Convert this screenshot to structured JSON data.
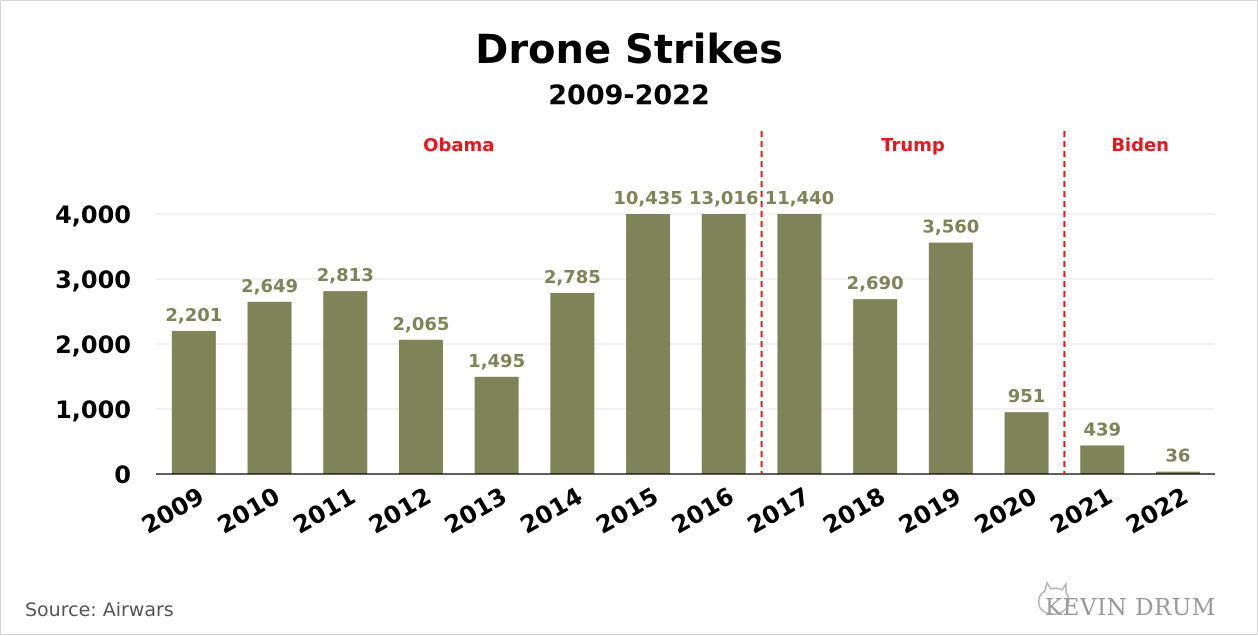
{
  "chart_data": {
    "type": "bar",
    "title": "Drone Strikes",
    "subtitle": "2009-2022",
    "categories": [
      "2009",
      "2010",
      "2011",
      "2012",
      "2013",
      "2014",
      "2015",
      "2016",
      "2017",
      "2018",
      "2019",
      "2020",
      "2021",
      "2022"
    ],
    "values": [
      2201,
      2649,
      2813,
      2065,
      1495,
      2785,
      10435,
      13016,
      11440,
      2690,
      3560,
      951,
      439,
      36
    ],
    "value_labels": [
      "2,201",
      "2,649",
      "2,813",
      "2,065",
      "1,495",
      "2,785",
      "10,435",
      "13,016",
      "11,440",
      "2,690",
      "3,560",
      "951",
      "439",
      "36"
    ],
    "ylim": [
      0,
      4000
    ],
    "yticks": [
      0,
      1000,
      2000,
      3000,
      4000
    ],
    "ytick_labels": [
      "0",
      "1,000",
      "2,000",
      "3,000",
      "4,000"
    ],
    "bars_clipped_at_axis_max": true,
    "bar_color": "#7f8458",
    "label_color": "#7f8458",
    "grid": true,
    "annotations": [
      {
        "text": "Obama",
        "from": "2009",
        "to": "2016",
        "color": "#e8171b"
      },
      {
        "text": "Trump",
        "from": "2017",
        "to": "2020",
        "color": "#e8171b"
      },
      {
        "text": "Biden",
        "from": "2021",
        "to": "2022",
        "color": "#e8171b"
      }
    ],
    "dividers": [
      {
        "between": [
          "2016",
          "2017"
        ],
        "style": "dashed",
        "color": "#e8171b"
      },
      {
        "between": [
          "2020",
          "2021"
        ],
        "style": "dashed",
        "color": "#e8171b"
      }
    ]
  },
  "source": "Source:  Airwars",
  "brand": "KEVIN DRUM"
}
